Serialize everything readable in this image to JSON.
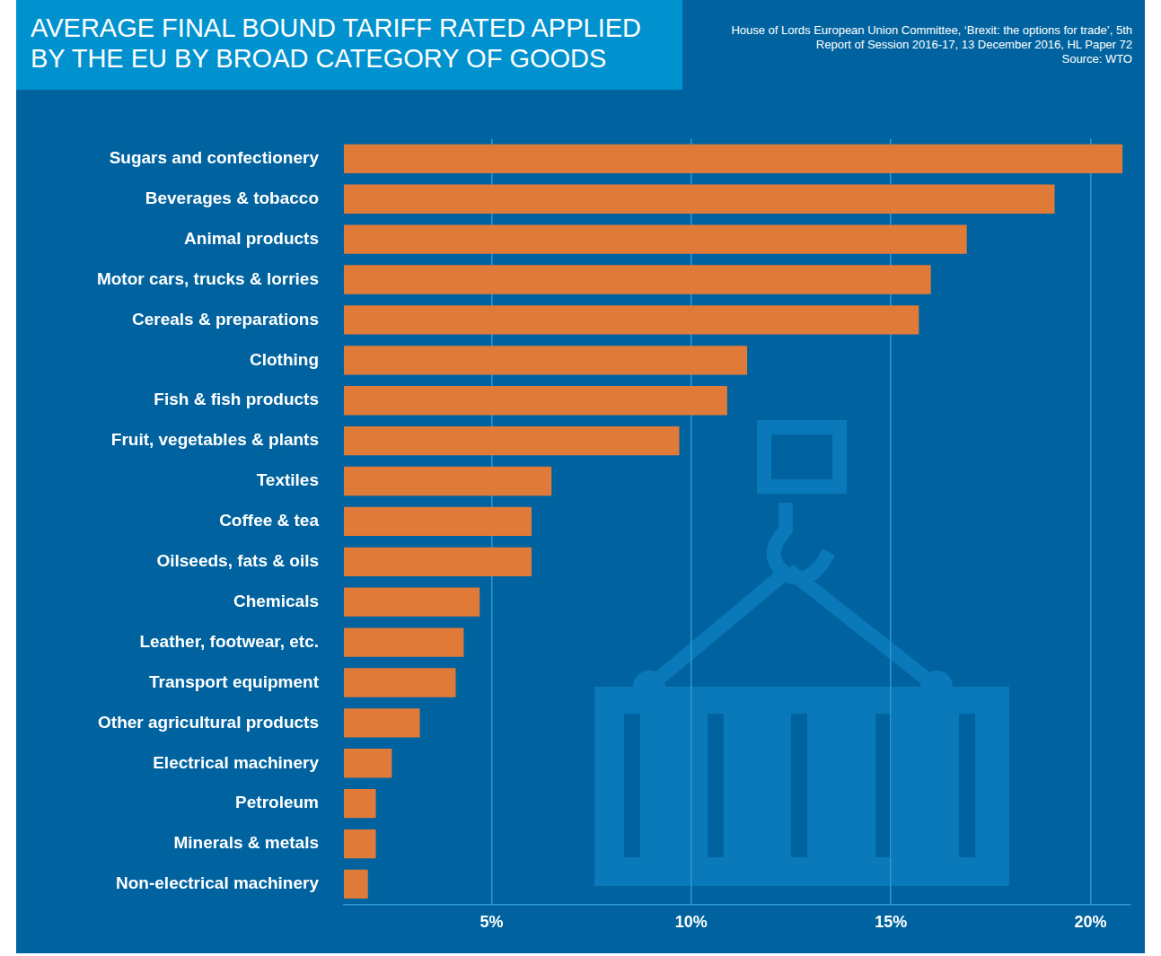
{
  "chart_data": {
    "type": "bar",
    "orientation": "horizontal",
    "title": "AVERAGE FINAL BOUND TARIFF RATED APPLIED BY THE EU BY BROAD CATEGORY OF GOODS",
    "annotations": [
      "House of Lords European Union Committee, ‘Brexit: the options for trade’, 5th Report of Session 2016-17, 13 December 2016, HL Paper 72",
      "Source: WTO"
    ],
    "categories": [
      "Sugars and confectionery",
      "Beverages & tobacco",
      "Animal products",
      "Motor cars, trucks & lorries",
      "Cereals & preparations",
      "Clothing",
      "Fish & fish products",
      "Fruit, vegetables & plants",
      "Textiles",
      "Coffee & tea",
      "Oilseeds, fats & oils",
      "Chemicals",
      "Leather, footwear, etc.",
      "Transport equipment",
      "Other agricultural products",
      "Electrical machinery",
      "Petroleum",
      "Minerals & metals",
      "Non-electrical machinery"
    ],
    "values": [
      20.8,
      19.1,
      16.9,
      16.0,
      15.7,
      11.4,
      10.9,
      9.7,
      6.5,
      6.0,
      6.0,
      4.7,
      4.3,
      4.1,
      3.2,
      2.5,
      2.1,
      2.1,
      1.9
    ],
    "color": "#e07a38",
    "xlim": [
      1.3,
      21
    ],
    "xticks": [
      {
        "value": 5,
        "label": "5%"
      },
      {
        "value": 10,
        "label": "10%"
      },
      {
        "value": 15,
        "label": "15%"
      },
      {
        "value": 20,
        "label": "20%"
      }
    ],
    "grid": true
  }
}
